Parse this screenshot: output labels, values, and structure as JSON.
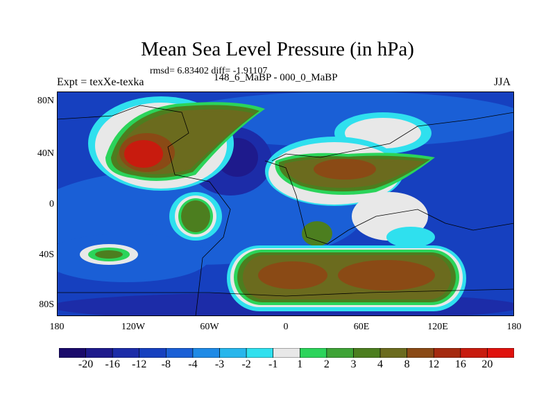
{
  "title": "Mean Sea Level Pressure (in hPa)",
  "stats": "rmsd= 6.83402 diff= -1.91107",
  "expt": "Expt = texXe-texka",
  "comparison": "148_6_MaBP - 000_0_MaBP",
  "season": "JJA",
  "x_ticks": [
    "180",
    "120W",
    "60W",
    "0",
    "60E",
    "120E",
    "180"
  ],
  "y_ticks": [
    "80N",
    "40N",
    "0",
    "40S",
    "80S"
  ],
  "colorbar": {
    "labels": [
      "-20",
      "-16",
      "-12",
      "-8",
      "-4",
      "-3",
      "-2",
      "-1",
      "1",
      "2",
      "3",
      "4",
      "8",
      "12",
      "16",
      "20"
    ],
    "colors": [
      "#1a0a6b",
      "#1e1a8c",
      "#1c2ca8",
      "#1640bf",
      "#1a5fd6",
      "#1e8ae6",
      "#27b6ec",
      "#2fe0ee",
      "#e8e8e8",
      "#2bd45a",
      "#3ea336",
      "#4c7e1f",
      "#6b6b1e",
      "#8a4a15",
      "#a52a0f",
      "#c81b0e",
      "#e0120e"
    ]
  },
  "map_colors": {
    "ocean_deep": "#1640bf",
    "ocean_mid": "#1a5fd6",
    "ocean_light": "#1e8ae6",
    "ocean_dark": "#1c2ca8",
    "cyan": "#2fe0ee",
    "white": "#e8e8e8",
    "green": "#2bd45a",
    "olive": "#4c7e1f",
    "brown": "#6b6b1e",
    "rust": "#8a4a15",
    "red": "#c81b0e"
  }
}
